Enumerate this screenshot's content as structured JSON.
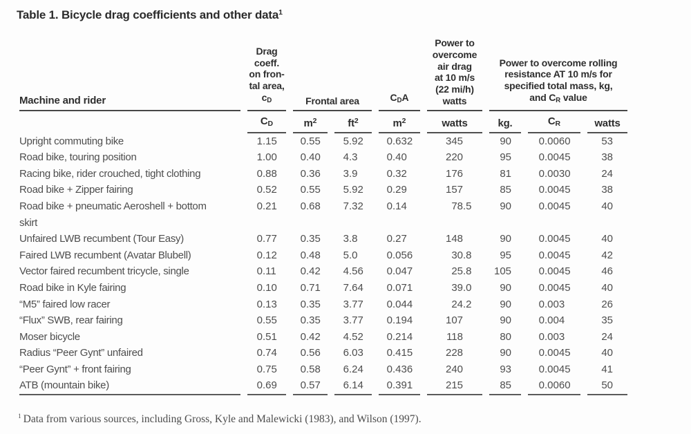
{
  "title": {
    "text": "Table 1. Bicycle drag coefficients and other data",
    "sup": "1"
  },
  "headers": {
    "machine": "Machine and rider",
    "drag_lines": "Drag\ncoeff.\non fron-\ntal area,",
    "drag_sym_main": "c",
    "drag_sym_sub": "D",
    "frontal": "Frontal area",
    "cda_main": "C",
    "cda_sub": "D",
    "cda_tail": "A",
    "air_lines": "Power to\novercome\nair drag\nat 10 m/s\n(22 mi/h)\nwatts",
    "rolling_lines": "Power to overcome rolling\nresistance AT 10 m/s for\nspecified total mass, kg,",
    "rolling_and": "and ",
    "rolling_sym_main": "C",
    "rolling_sym_sub": "R",
    "rolling_tail": " value"
  },
  "table": {
    "units": [
      {
        "name": "cd",
        "main": "C",
        "sub": "D"
      },
      {
        "name": "frontal-m2",
        "main": "m",
        "sup": "2"
      },
      {
        "name": "frontal-ft2",
        "main": "ft",
        "sup": "2"
      },
      {
        "name": "cda-m2",
        "main": "m",
        "sup": "2"
      },
      {
        "name": "air-drag-watts",
        "main": "watts"
      },
      {
        "name": "mass-kg",
        "main": "kg."
      },
      {
        "name": "cr",
        "main": "C",
        "sub": "R"
      },
      {
        "name": "rolling-watts",
        "main": "watts"
      }
    ],
    "rows": [
      {
        "machine": "Upright commuting bike",
        "values": [
          "1.15",
          "0.55",
          "5.92",
          "0.632",
          "345",
          "90",
          "0.0060",
          "53"
        ]
      },
      {
        "machine": "Road bike, touring position",
        "values": [
          "1.00",
          "0.40",
          "4.3",
          "0.40",
          "220",
          "95",
          "0.0045",
          "38"
        ]
      },
      {
        "machine": "Racing bike, rider crouched, tight clothing",
        "values": [
          "0.88",
          "0.36",
          "3.9",
          "0.32",
          "176",
          "81",
          "0.0030",
          "24"
        ]
      },
      {
        "machine": "Road bike + Zipper fairing",
        "values": [
          "0.52",
          "0.55",
          "5.92",
          "0.29",
          "157",
          "85",
          "0.0045",
          "38"
        ]
      },
      {
        "machine": "Road bike + pneumatic Aeroshell + bottom\nskirt",
        "values": [
          "0.21",
          "0.68",
          "7.32",
          "0.14",
          "78.5",
          "90",
          "0.0045",
          "40"
        ]
      },
      {
        "machine": "Unfaired LWB recumbent (Tour Easy)",
        "values": [
          "0.77",
          "0.35",
          "3.8",
          "0.27",
          "148",
          "90",
          "0.0045",
          "40"
        ]
      },
      {
        "machine": "Faired LWB recumbent (Avatar Blubell)",
        "values": [
          "0.12",
          "0.48",
          "5.0",
          "0.056",
          "30.8",
          "95",
          "0.0045",
          "42"
        ]
      },
      {
        "machine": "Vector faired recumbent tricycle, single",
        "values": [
          "0.11",
          "0.42",
          "4.56",
          "0.047",
          "25.8",
          "105",
          "0.0045",
          "46"
        ]
      },
      {
        "machine": "Road bike in Kyle fairing",
        "values": [
          "0.10",
          "0.71",
          "7.64",
          "0.071",
          "39.0",
          "90",
          "0.0045",
          "40"
        ]
      },
      {
        "machine": "“M5” faired low racer",
        "values": [
          "0.13",
          "0.35",
          "3.77",
          "0.044",
          "24.2",
          "90",
          "0.003",
          "26"
        ]
      },
      {
        "machine": "“Flux” SWB, rear fairing",
        "values": [
          "0.55",
          "0.35",
          "3.77",
          "0.194",
          "107",
          "90",
          "0.004",
          "35"
        ]
      },
      {
        "machine": "Moser bicycle",
        "values": [
          "0.51",
          "0.42",
          "4.52",
          "0.214",
          "118",
          "80",
          "0.003",
          "24"
        ]
      },
      {
        "machine": "Radius “Peer Gynt” unfaired",
        "values": [
          "0.74",
          "0.56",
          "6.03",
          "0.415",
          "228",
          "90",
          "0.0045",
          "40"
        ]
      },
      {
        "machine": "“Peer Gynt” + front fairing",
        "values": [
          "0.75",
          "0.58",
          "6.24",
          "0.436",
          "240",
          "93",
          "0.0045",
          "41"
        ]
      },
      {
        "machine": "ATB (mountain bike)",
        "values": [
          "0.69",
          "0.57",
          "6.14",
          "0.391",
          "215",
          "85",
          "0.0060",
          "50"
        ]
      }
    ]
  },
  "footnote": {
    "sup": "1",
    "text": "Data from various sources, including Gross, Kyle and Malewicki (1983), and Wilson (1997)."
  },
  "colors": {
    "background": "#fdfdfd",
    "heading_text": "#2b2b2b",
    "body_text": "#4d4d4d",
    "rule": "#4f4f4f"
  }
}
